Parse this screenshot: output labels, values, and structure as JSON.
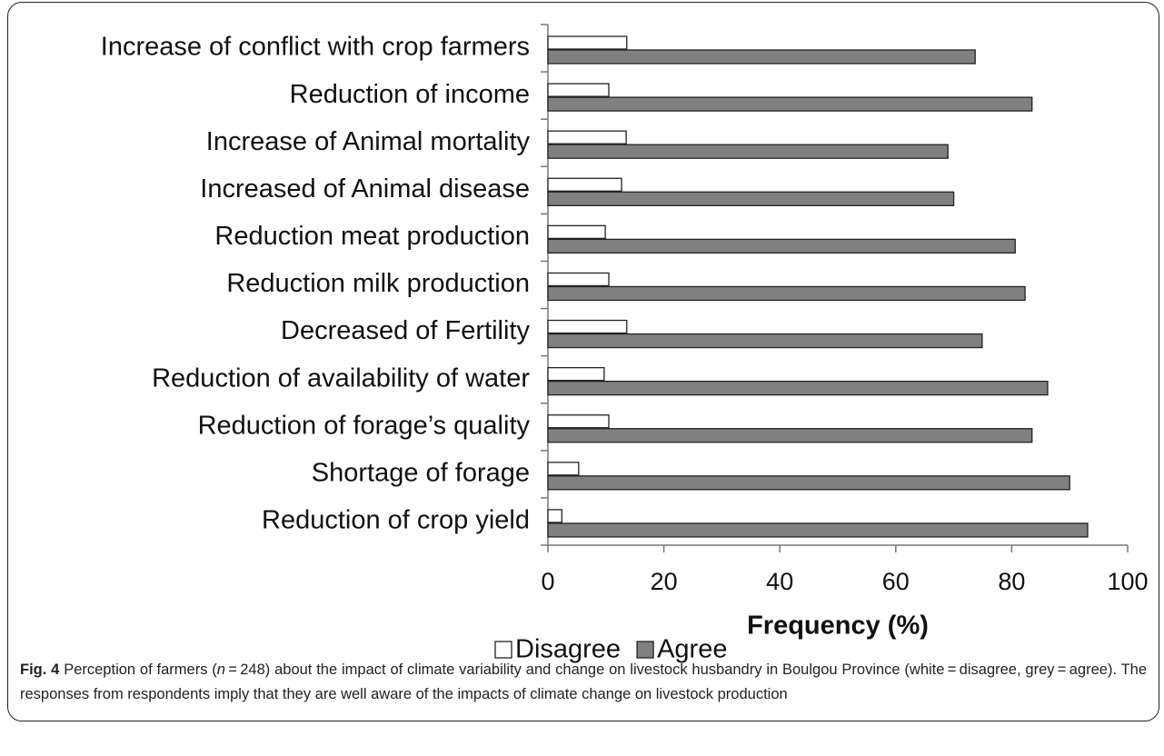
{
  "chart_data": {
    "type": "bar",
    "orientation": "horizontal",
    "categories": [
      "Increase of conflict with crop farmers",
      "Reduction of income",
      "Increase of Animal mortality",
      "Increased of Animal disease",
      "Reduction meat production",
      "Reduction milk production",
      "Decreased of Fertility",
      "Reduction of availability of water",
      "Reduction of forage’s quality",
      "Shortage of forage",
      "Reduction of crop yield"
    ],
    "series": [
      {
        "name": "Disagree",
        "color": "#ffffff",
        "values": [
          13.6,
          10.5,
          13.5,
          12.7,
          9.9,
          10.5,
          13.6,
          9.7,
          10.5,
          5.3,
          2.4
        ]
      },
      {
        "name": "Agree",
        "color": "#808080",
        "values": [
          73.7,
          83.5,
          69,
          70,
          80.6,
          82.3,
          74.9,
          86.2,
          83.5,
          90,
          93.1
        ]
      }
    ],
    "xlabel": "Frequency (%)",
    "xlim": [
      0,
      100
    ],
    "xticks": [
      0,
      20,
      40,
      60,
      80,
      100
    ],
    "grid": false,
    "legend": "bottom",
    "caption": {
      "label": "Fig. 4",
      "parts": [
        "Perception of farmers (",
        "n",
        " = 248) about the impact of climate variability and change on livestock husbandry in Boulgou Province (white = disagree, grey = agree). The responses from respondents imply that they are well aware of the impacts of climate change on livestock production"
      ]
    }
  }
}
